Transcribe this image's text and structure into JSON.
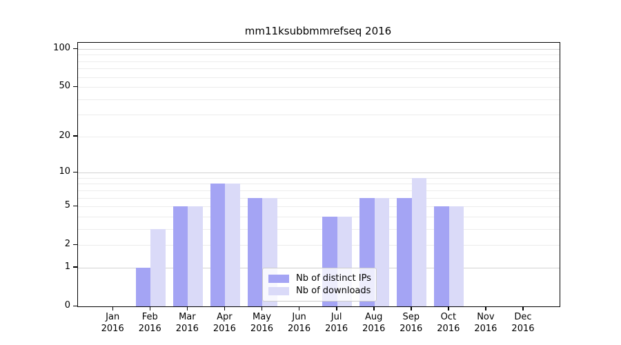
{
  "chart_data": {
    "type": "bar",
    "title": "mm11ksubbmmrefseq 2016",
    "categories": [
      "Jan",
      "Feb",
      "Mar",
      "Apr",
      "May",
      "Jun",
      "Jul",
      "Aug",
      "Sep",
      "Oct",
      "Nov",
      "Dec"
    ],
    "category_year": "2016",
    "series": [
      {
        "name": "Nb of distinct IPs",
        "color": "#a4a4f4",
        "values": [
          0,
          1,
          5,
          8,
          6,
          0,
          4,
          6,
          6,
          5,
          0,
          0
        ]
      },
      {
        "name": "Nb of downloads",
        "color": "#dadaf8",
        "values": [
          0,
          3,
          5,
          8,
          6,
          0,
          4,
          6,
          9,
          5,
          0,
          0
        ]
      }
    ],
    "yscale": "log1p",
    "ylim": [
      0,
      112
    ],
    "yticks": [
      100,
      50,
      20,
      10,
      5,
      2,
      1,
      0
    ],
    "major_gridlines": [
      1,
      10,
      100
    ],
    "minor_gridlines": [
      2,
      3,
      4,
      5,
      6,
      7,
      8,
      9,
      20,
      30,
      40,
      50,
      60,
      70,
      80,
      90
    ],
    "grid": true,
    "legend_position": "lower-center",
    "xlabel": "",
    "ylabel": ""
  }
}
